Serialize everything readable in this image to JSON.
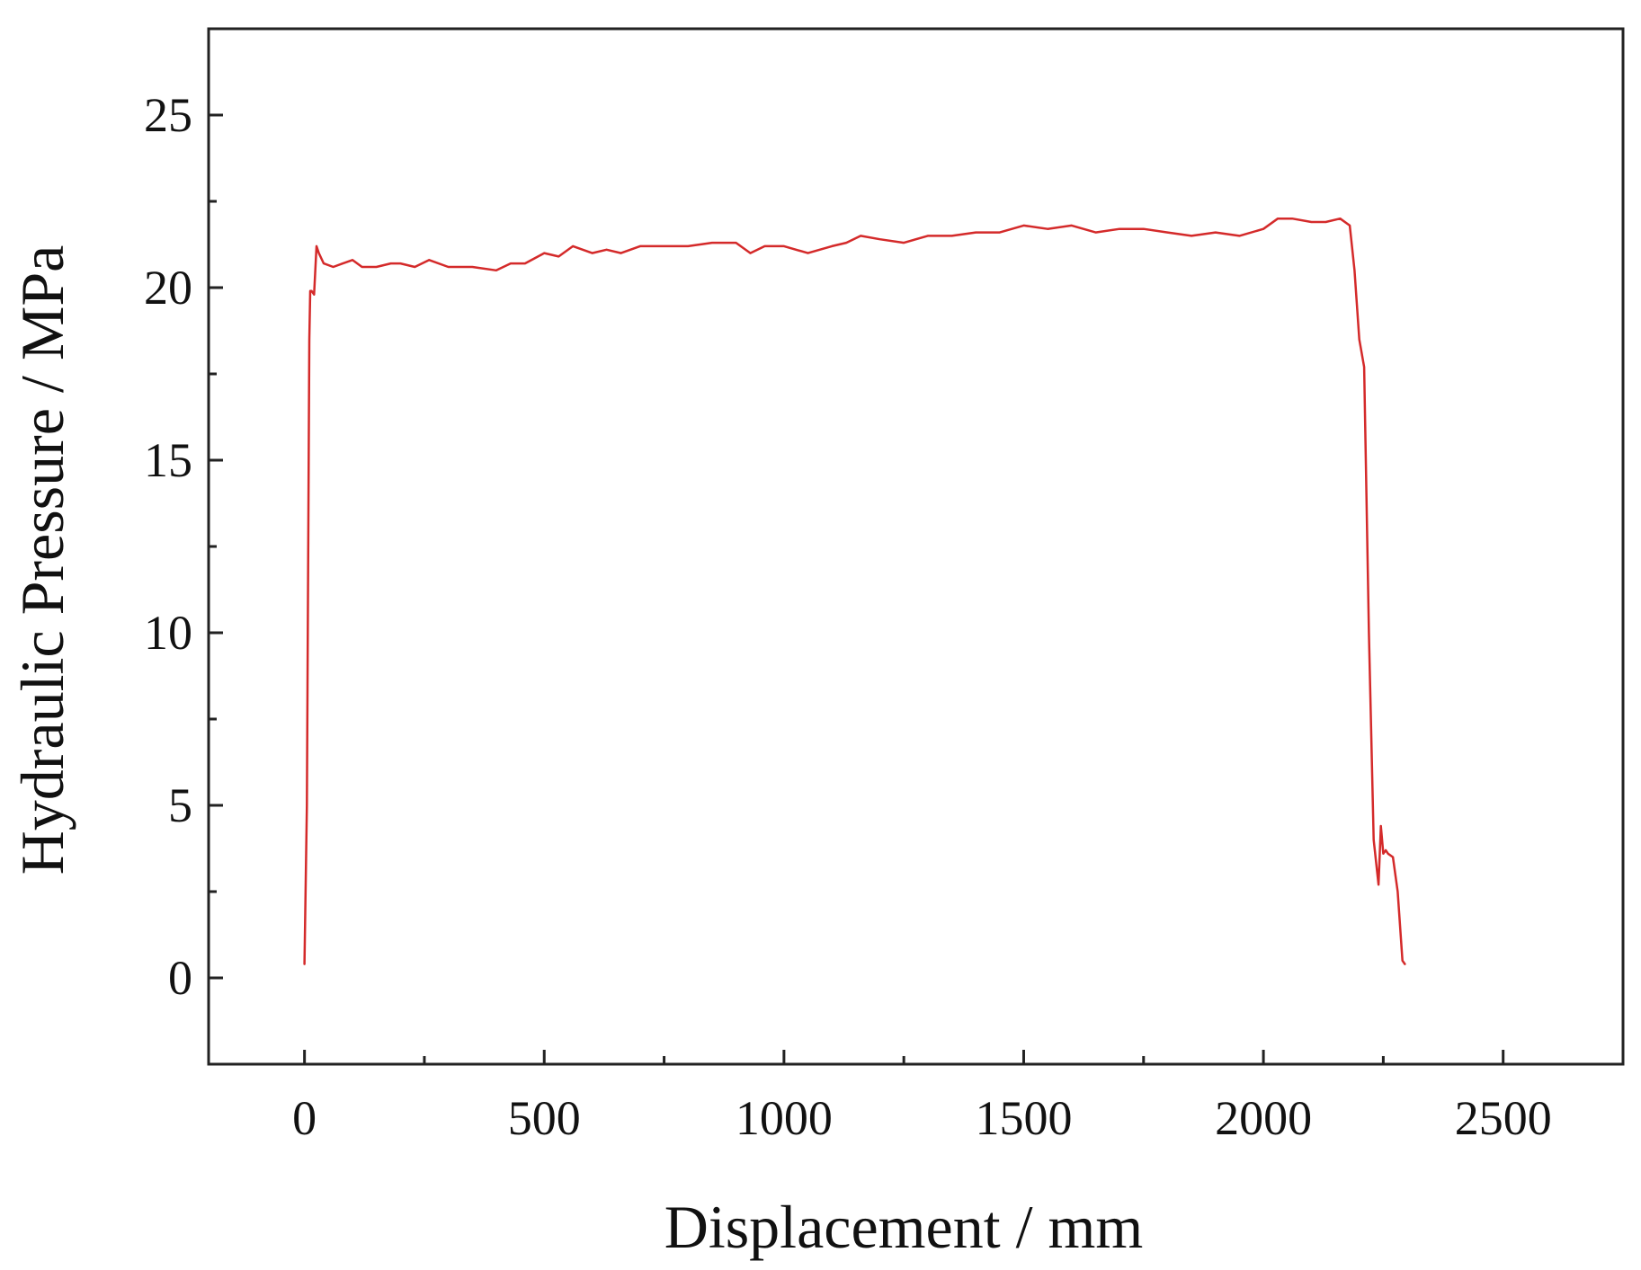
{
  "chart_data": {
    "type": "line",
    "xlabel": "Displacement / mm",
    "ylabel": "Hydraulic Pressure / MPa",
    "xlim": [
      -200,
      2750
    ],
    "ylim": [
      -2.5,
      27.5
    ],
    "x_major_ticks": [
      0,
      500,
      1000,
      1500,
      2000,
      2500
    ],
    "x_minor_ticks": [
      250,
      750,
      1250,
      1750,
      2250
    ],
    "y_major_ticks": [
      0,
      5,
      10,
      15,
      20,
      25
    ],
    "y_minor_ticks": [
      2.5,
      7.5,
      12.5,
      17.5,
      22.5
    ],
    "x_tick_labels": [
      "0",
      "500",
      "1000",
      "1500",
      "2000",
      "2500"
    ],
    "y_tick_labels": [
      "0",
      "5",
      "10",
      "15",
      "20",
      "25"
    ],
    "grid": false,
    "colors": {
      "line": "#d42a2a",
      "axis": "#222222"
    },
    "series": [
      {
        "x": [
          0,
          5,
          8,
          10,
          12,
          15,
          20,
          25,
          30,
          40,
          60,
          80,
          100,
          120,
          150,
          180,
          200,
          230,
          260,
          300,
          350,
          400,
          430,
          460,
          500,
          530,
          560,
          600,
          630,
          660,
          700,
          750,
          800,
          850,
          900,
          930,
          960,
          1000,
          1050,
          1100,
          1130,
          1160,
          1200,
          1250,
          1300,
          1350,
          1400,
          1450,
          1500,
          1550,
          1600,
          1650,
          1700,
          1750,
          1800,
          1850,
          1900,
          1950,
          2000,
          2030,
          2060,
          2100,
          2130,
          2160,
          2180,
          2190,
          2200,
          2210,
          2220,
          2230,
          2240,
          2245,
          2250,
          2255,
          2260,
          2270,
          2280,
          2290,
          2295
        ],
        "y": [
          0.4,
          5,
          13,
          18.5,
          19.9,
          19.9,
          19.8,
          21.2,
          21.0,
          20.7,
          20.6,
          20.7,
          20.8,
          20.6,
          20.6,
          20.7,
          20.7,
          20.6,
          20.8,
          20.6,
          20.6,
          20.5,
          20.7,
          20.7,
          21.0,
          20.9,
          21.2,
          21.0,
          21.1,
          21.0,
          21.2,
          21.2,
          21.2,
          21.3,
          21.3,
          21.0,
          21.2,
          21.2,
          21.0,
          21.2,
          21.3,
          21.5,
          21.4,
          21.3,
          21.5,
          21.5,
          21.6,
          21.6,
          21.8,
          21.7,
          21.8,
          21.6,
          21.7,
          21.7,
          21.6,
          21.5,
          21.6,
          21.5,
          21.7,
          22.0,
          22.0,
          21.9,
          21.9,
          22.0,
          21.8,
          20.5,
          18.5,
          17.7,
          10,
          4.0,
          2.7,
          4.4,
          3.6,
          3.7,
          3.6,
          3.5,
          2.5,
          0.5,
          0.4
        ]
      }
    ]
  }
}
